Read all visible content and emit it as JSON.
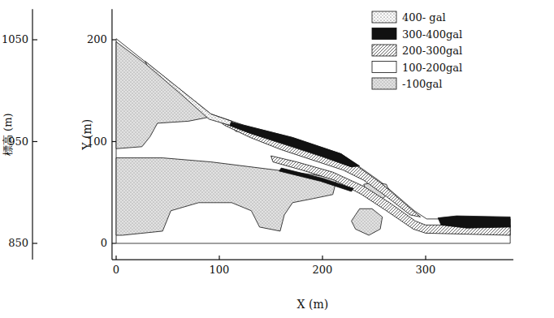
{
  "chart_data": {
    "type": "contour",
    "x_label": "X (m)",
    "y_label": "Y (m)",
    "y2_label": "標高 (m)",
    "xlim": [
      -4,
      385
    ],
    "xticks": [
      0,
      100,
      200,
      300
    ],
    "ylim": [
      -16,
      230
    ],
    "yticks": [
      0,
      100,
      200
    ],
    "y2lim": [
      834,
      1080
    ],
    "y2ticks": [
      850,
      950,
      1050
    ],
    "series": [
      {
        "name": "400-   gal",
        "color": "#ffffff",
        "polygons": [
          [
            [
              28,
              179
            ],
            [
              60,
              153
            ],
            [
              92,
              127
            ],
            [
              112,
              120
            ],
            [
              110,
              116
            ],
            [
              90,
              122
            ],
            [
              60,
              149
            ],
            [
              30,
              175
            ]
          ]
        ]
      },
      {
        "name": "300-400gal",
        "color": "#111111",
        "polygons": [
          [
            [
              100,
              122
            ],
            [
              124,
              116
            ],
            [
              171,
              104
            ],
            [
              218,
              88
            ],
            [
              236,
              76
            ],
            [
              228,
              75
            ],
            [
              200,
              85
            ],
            [
              170,
              95
            ],
            [
              130,
              108
            ],
            [
              104,
              118
            ]
          ],
          [
            [
              312,
              25
            ],
            [
              330,
              27
            ],
            [
              382,
              26
            ],
            [
              382,
              16
            ],
            [
              340,
              15
            ],
            [
              315,
              18
            ]
          ],
          [
            [
              160,
              74
            ],
            [
              200,
              64
            ],
            [
              230,
              54
            ],
            [
              228,
              51
            ],
            [
              198,
              61
            ],
            [
              158,
              71
            ]
          ]
        ]
      },
      {
        "name": "200-300gal",
        "color": "#ffffff",
        "polygons": [
          [
            [
              92,
              126
            ],
            [
              124,
              115
            ],
            [
              171,
              103
            ],
            [
              218,
              87
            ],
            [
              257,
              59
            ],
            [
              289,
              31
            ],
            [
              295,
              26
            ],
            [
              285,
              28
            ],
            [
              262,
              46
            ],
            [
              240,
              62
            ],
            [
              220,
              72
            ],
            [
              190,
              82
            ],
            [
              160,
              92
            ],
            [
              130,
              104
            ],
            [
              105,
              116
            ]
          ],
          [
            [
              150,
              86
            ],
            [
              175,
              80
            ],
            [
              210,
              70
            ],
            [
              240,
              56
            ],
            [
              265,
              40
            ],
            [
              290,
              22
            ],
            [
              300,
              18
            ],
            [
              382,
              18
            ],
            [
              382,
              8
            ],
            [
              300,
              10
            ],
            [
              288,
              14
            ],
            [
              262,
              32
            ],
            [
              238,
              48
            ],
            [
              212,
              62
            ],
            [
              180,
              72
            ],
            [
              152,
              80
            ]
          ]
        ]
      },
      {
        "name": "100-200gal",
        "color": "#ffffff",
        "polygons": [
          [
            [
              0,
              201
            ],
            [
              92,
              127
            ],
            [
              124,
              116
            ],
            [
              171,
              104
            ],
            [
              218,
              88
            ],
            [
              257,
              60
            ],
            [
              289,
              32
            ],
            [
              301,
              24
            ],
            [
              382,
              24
            ],
            [
              382,
              0
            ],
            [
              0,
              0
            ]
          ]
        ]
      },
      {
        "name": "-100gal",
        "color": "#e2e2e2",
        "polygons": [
          [
            [
              0,
              198
            ],
            [
              50,
              160
            ],
            [
              88,
              128
            ],
            [
              90,
              124
            ],
            [
              70,
              120
            ],
            [
              40,
              118
            ],
            [
              33,
              105
            ],
            [
              25,
              95
            ],
            [
              0,
              93
            ]
          ],
          [
            [
              0,
              84
            ],
            [
              45,
              84
            ],
            [
              92,
              80
            ],
            [
              155,
              72
            ],
            [
              187,
              68
            ],
            [
              214,
              64
            ],
            [
              210,
              48
            ],
            [
              191,
              44
            ],
            [
              171,
              40
            ],
            [
              163,
              28
            ],
            [
              159,
              12
            ],
            [
              139,
              16
            ],
            [
              131,
              32
            ],
            [
              112,
              40
            ],
            [
              80,
              40
            ],
            [
              53,
              32
            ],
            [
              45,
              12
            ],
            [
              6,
              8
            ],
            [
              0,
              8
            ]
          ],
          [
            [
              228,
              22
            ],
            [
              232,
              14
            ],
            [
              245,
              8
            ],
            [
              256,
              14
            ],
            [
              258,
              26
            ],
            [
              248,
              34
            ],
            [
              236,
              34
            ]
          ],
          [
            [
              240,
              58
            ],
            [
              250,
              60
            ],
            [
              262,
              58
            ],
            [
              265,
              50
            ],
            [
              256,
              42
            ],
            [
              244,
              44
            ]
          ],
          [
            [
              114,
              113
            ],
            [
              118,
              116
            ],
            [
              123,
              114
            ],
            [
              121,
              110
            ],
            [
              116,
              110
            ]
          ]
        ]
      }
    ]
  }
}
